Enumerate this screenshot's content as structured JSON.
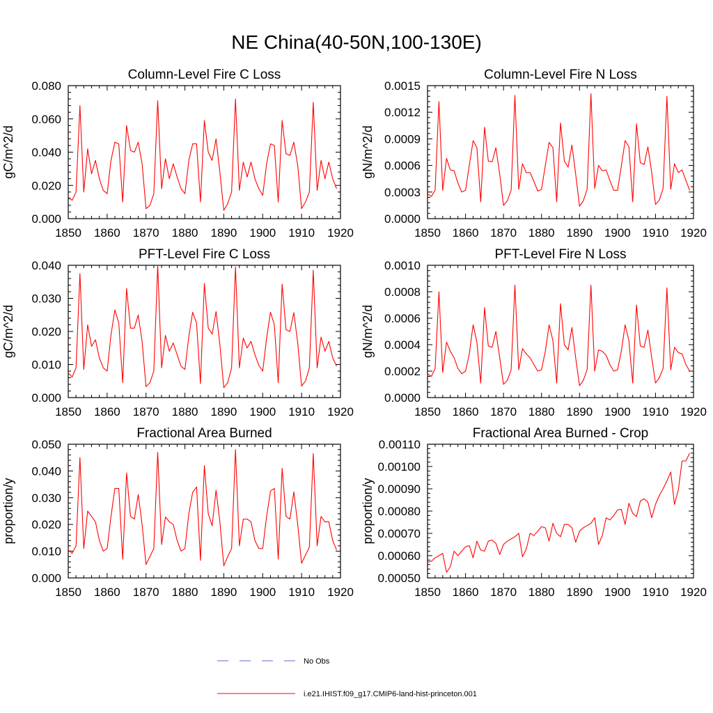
{
  "page": {
    "title": "NE China(40-50N,100-130E)"
  },
  "legend": [
    {
      "label": "No Obs",
      "color": "#5a6ec8",
      "dashed": true
    },
    {
      "label": "i.e21.IHIST.f09_g17.CMIP6-land-hist-princeton.001",
      "color": "#ff0000",
      "dashed": false
    }
  ],
  "chart_data": [
    {
      "type": "line",
      "title": "Column-Level Fire C Loss",
      "ylabel": "gC/m^2/d",
      "xlim": [
        1850,
        1920
      ],
      "ylim": [
        0,
        0.08
      ],
      "xticks": [
        "1850",
        "1860",
        "1870",
        "1880",
        "1890",
        "1900",
        "1910",
        "1920"
      ],
      "yticks": [
        "0.000",
        "0.020",
        "0.040",
        "0.060",
        "0.080"
      ],
      "x_start": 1850,
      "series": [
        {
          "color": "#ff0000",
          "values": [
            0.013,
            0.011,
            0.016,
            0.068,
            0.016,
            0.042,
            0.027,
            0.035,
            0.024,
            0.017,
            0.015,
            0.035,
            0.046,
            0.045,
            0.01,
            0.056,
            0.041,
            0.04,
            0.046,
            0.033,
            0.006,
            0.008,
            0.015,
            0.071,
            0.018,
            0.036,
            0.024,
            0.033,
            0.025,
            0.018,
            0.015,
            0.035,
            0.045,
            0.045,
            0.01,
            0.059,
            0.04,
            0.035,
            0.048,
            0.028,
            0.005,
            0.009,
            0.016,
            0.072,
            0.017,
            0.034,
            0.025,
            0.034,
            0.024,
            0.018,
            0.014,
            0.033,
            0.045,
            0.044,
            0.01,
            0.059,
            0.039,
            0.038,
            0.046,
            0.032,
            0.006,
            0.01,
            0.016,
            0.07,
            0.017,
            0.035,
            0.024,
            0.034,
            0.024,
            0.018
          ]
        }
      ]
    },
    {
      "type": "line",
      "title": "Column-Level Fire N Loss",
      "ylabel": "gN/m^2/d",
      "xlim": [
        1850,
        1920
      ],
      "ylim": [
        0,
        0.0015
      ],
      "xticks": [
        "1850",
        "1860",
        "1870",
        "1880",
        "1890",
        "1900",
        "1910",
        "1920"
      ],
      "yticks": [
        "0.0000",
        "0.0003",
        "0.0006",
        "0.0009",
        "0.0012",
        "0.0015"
      ],
      "x_start": 1850,
      "series": [
        {
          "color": "#ff0000",
          "values": [
            0.00028,
            0.00025,
            0.00032,
            0.00132,
            0.00032,
            0.00068,
            0.00055,
            0.00054,
            0.0004,
            0.0003,
            0.00032,
            0.0006,
            0.00088,
            0.0008,
            0.00019,
            0.00103,
            0.00065,
            0.00064,
            0.0008,
            0.0005,
            0.00015,
            0.0002,
            0.00032,
            0.00139,
            0.00033,
            0.00062,
            0.00052,
            0.00052,
            0.00042,
            0.00031,
            0.00033,
            0.0006,
            0.00086,
            0.0008,
            0.00019,
            0.00108,
            0.00065,
            0.00058,
            0.00083,
            0.0005,
            0.00014,
            0.0002,
            0.00033,
            0.00141,
            0.00034,
            0.0006,
            0.00054,
            0.00055,
            0.00043,
            0.00032,
            0.00032,
            0.00059,
            0.00088,
            0.00081,
            0.00019,
            0.00107,
            0.00063,
            0.00061,
            0.00081,
            0.00052,
            0.00016,
            0.00021,
            0.00034,
            0.00138,
            0.00033,
            0.00062,
            0.00052,
            0.00055,
            0.00043,
            0.00032
          ]
        }
      ]
    },
    {
      "type": "line",
      "title": "PFT-Level Fire C Loss",
      "ylabel": "gC/m^2/d",
      "xlim": [
        1850,
        1920
      ],
      "ylim": [
        0,
        0.04
      ],
      "xticks": [
        "1850",
        "1860",
        "1870",
        "1880",
        "1890",
        "1900",
        "1910",
        "1920"
      ],
      "yticks": [
        "0.000",
        "0.010",
        "0.020",
        "0.030",
        "0.040"
      ],
      "x_start": 1850,
      "series": [
        {
          "color": "#ff0000",
          "values": [
            0.0075,
            0.0062,
            0.009,
            0.0375,
            0.0085,
            0.022,
            0.0155,
            0.0175,
            0.012,
            0.009,
            0.008,
            0.019,
            0.0265,
            0.0225,
            0.0045,
            0.033,
            0.021,
            0.021,
            0.025,
            0.017,
            0.0033,
            0.0045,
            0.008,
            0.04,
            0.009,
            0.0188,
            0.014,
            0.0165,
            0.013,
            0.0095,
            0.0085,
            0.0185,
            0.0258,
            0.0225,
            0.0042,
            0.0345,
            0.021,
            0.0192,
            0.026,
            0.016,
            0.003,
            0.0045,
            0.009,
            0.0395,
            0.009,
            0.018,
            0.015,
            0.017,
            0.013,
            0.0098,
            0.008,
            0.018,
            0.0258,
            0.022,
            0.0045,
            0.0343,
            0.0205,
            0.02,
            0.0257,
            0.0165,
            0.0035,
            0.005,
            0.009,
            0.0385,
            0.009,
            0.0183,
            0.014,
            0.017,
            0.012,
            0.0095
          ]
        }
      ]
    },
    {
      "type": "line",
      "title": "PFT-Level Fire N Loss",
      "ylabel": "gN/m^2/d",
      "xlim": [
        1850,
        1920
      ],
      "ylim": [
        0,
        0.001
      ],
      "xticks": [
        "1850",
        "1860",
        "1870",
        "1880",
        "1890",
        "1900",
        "1910",
        "1920"
      ],
      "yticks": [
        "0.0000",
        "0.0002",
        "0.0004",
        "0.0006",
        "0.0008",
        "0.0010"
      ],
      "x_start": 1850,
      "series": [
        {
          "color": "#ff0000",
          "values": [
            0.00018,
            0.00016,
            0.00022,
            0.0008,
            0.00019,
            0.00042,
            0.00035,
            0.0003,
            0.00022,
            0.00018,
            0.0002,
            0.00033,
            0.00055,
            0.00042,
            0.00011,
            0.00068,
            0.00039,
            0.00038,
            0.0005,
            0.0003,
            0.0001,
            0.00013,
            0.00021,
            0.00085,
            0.00021,
            0.00037,
            0.00033,
            0.0003,
            0.00025,
            0.0002,
            0.00021,
            0.00035,
            0.00055,
            0.00043,
            0.00011,
            0.00071,
            0.0004,
            0.00036,
            0.00053,
            0.0003,
            9e-05,
            0.00013,
            0.00021,
            0.00085,
            0.0002,
            0.00036,
            0.00035,
            0.00032,
            0.00025,
            0.0002,
            0.00021,
            0.00035,
            0.00055,
            0.00043,
            0.00011,
            0.0007,
            0.00039,
            0.00038,
            0.00051,
            0.0003,
            0.00011,
            0.00015,
            0.00022,
            0.00083,
            0.00021,
            0.00038,
            0.00034,
            0.00033,
            0.00025,
            0.0002
          ]
        }
      ]
    },
    {
      "type": "line",
      "title": "Fractional Area Burned",
      "ylabel": "proportion/y",
      "xlim": [
        1850,
        1920
      ],
      "ylim": [
        0,
        0.05
      ],
      "xticks": [
        "1850",
        "1860",
        "1870",
        "1880",
        "1890",
        "1900",
        "1910",
        "1920"
      ],
      "yticks": [
        "0.000",
        "0.010",
        "0.020",
        "0.030",
        "0.040",
        "0.050"
      ],
      "x_start": 1850,
      "series": [
        {
          "color": "#ff0000",
          "values": [
            0.0105,
            0.0092,
            0.012,
            0.045,
            0.011,
            0.025,
            0.023,
            0.021,
            0.014,
            0.01,
            0.011,
            0.023,
            0.0335,
            0.0335,
            0.007,
            0.0393,
            0.023,
            0.022,
            0.0312,
            0.02,
            0.005,
            0.008,
            0.011,
            0.047,
            0.0125,
            0.0228,
            0.021,
            0.02,
            0.014,
            0.01,
            0.011,
            0.024,
            0.032,
            0.034,
            0.0065,
            0.042,
            0.024,
            0.0195,
            0.0328,
            0.021,
            0.0045,
            0.008,
            0.011,
            0.048,
            0.012,
            0.022,
            0.022,
            0.021,
            0.014,
            0.011,
            0.011,
            0.023,
            0.0325,
            0.0335,
            0.007,
            0.041,
            0.023,
            0.022,
            0.0322,
            0.02,
            0.0055,
            0.0085,
            0.0115,
            0.0465,
            0.012,
            0.023,
            0.021,
            0.021,
            0.014,
            0.0105
          ]
        }
      ]
    },
    {
      "type": "line",
      "title": "Fractional Area Burned - Crop",
      "ylabel": "proportion/y",
      "xlim": [
        1850,
        1920
      ],
      "ylim": [
        0.0005,
        0.0011
      ],
      "xticks": [
        "1850",
        "1860",
        "1870",
        "1880",
        "1890",
        "1900",
        "1910",
        "1920"
      ],
      "yticks": [
        "0.00050",
        "0.00060",
        "0.00070",
        "0.00080",
        "0.00090",
        "0.00100",
        "0.00110"
      ],
      "x_start": 1850,
      "series": [
        {
          "color": "#ff0000",
          "values": [
            0.00057,
            0.000575,
            0.00059,
            0.0006,
            0.00061,
            0.000525,
            0.00055,
            0.00062,
            0.0006,
            0.00062,
            0.00064,
            0.000645,
            0.00059,
            0.000665,
            0.000625,
            0.00062,
            0.000665,
            0.00067,
            0.000655,
            0.000605,
            0.00065,
            0.000665,
            0.000675,
            0.000685,
            0.0007,
            0.000595,
            0.00063,
            0.0007,
            0.00069,
            0.00071,
            0.00073,
            0.000725,
            0.000665,
            0.000745,
            0.0007,
            0.000685,
            0.00074,
            0.00074,
            0.000725,
            0.00066,
            0.00071,
            0.000725,
            0.000735,
            0.000745,
            0.00077,
            0.00065,
            0.00069,
            0.00077,
            0.00076,
            0.00078,
            0.000805,
            0.000808,
            0.00074,
            0.000835,
            0.00079,
            0.000775,
            0.000845,
            0.000855,
            0.00084,
            0.00077,
            0.00083,
            0.00087,
            0.0009,
            0.000935,
            0.000975,
            0.00083,
            0.000895,
            0.001025,
            0.001025,
            0.00106
          ]
        }
      ]
    }
  ]
}
